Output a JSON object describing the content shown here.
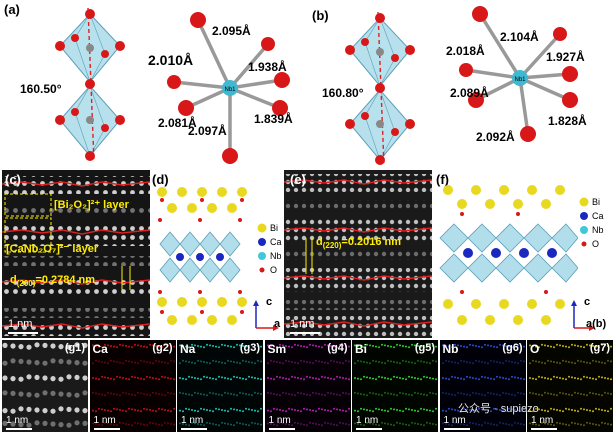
{
  "panel_labels": {
    "a": "(a)",
    "b": "(b)",
    "c": "(c)",
    "d": "(d)",
    "e": "(e)",
    "f": "(f)"
  },
  "panel_a": {
    "angle": "160.50°",
    "bonds": [
      "2.095Å",
      "2.010Å",
      "1.938Å",
      "2.081Å",
      "1.839Å",
      "2.097Å"
    ],
    "center_atom": "Nb1"
  },
  "panel_b": {
    "angle": "160.80°",
    "bonds": [
      "2.104Å",
      "2.018Å",
      "1.927Å",
      "2.089Å",
      "1.828Å",
      "2.092Å"
    ],
    "center_atom": "Nb1"
  },
  "panel_c": {
    "layer1": "[Bi₂O₂]²⁺ layer",
    "layer2": "[CaNb₂O₇]²⁻ layer",
    "d_label": "d",
    "d_sub": "(200)",
    "d_value": "=0.2784 nm",
    "scale": "1 nm"
  },
  "panel_d": {
    "legend": [
      "Bi",
      "Ca",
      "Nb",
      "O"
    ],
    "axis_up": "c",
    "axis_right": "a"
  },
  "panel_e": {
    "d_label": "d",
    "d_sub": "(220)",
    "d_value": "=0.2016 nm",
    "scale": "1 nm"
  },
  "panel_f": {
    "legend": [
      "Bi",
      "Ca",
      "Nb",
      "O"
    ],
    "axis_up": "c",
    "axis_right": "a(b)"
  },
  "eds_tiles": [
    {
      "name": "",
      "code": "(g1)",
      "color": "#d8d8d8",
      "bg": "#1a1a1a"
    },
    {
      "name": "Ca",
      "code": "(g2)",
      "color": "#d01020",
      "bg": "#080000"
    },
    {
      "name": "Na",
      "code": "(g3)",
      "color": "#20d0c0",
      "bg": "#000505"
    },
    {
      "name": "Sm",
      "code": "(g4)",
      "color": "#c020c0",
      "bg": "#050005"
    },
    {
      "name": "Bi",
      "code": "(g5)",
      "color": "#30e030",
      "bg": "#000500"
    },
    {
      "name": "Nb",
      "code": "(g6)",
      "color": "#3050e0",
      "bg": "#000008"
    },
    {
      "name": "O",
      "code": "(g7)",
      "color": "#d0c020",
      "bg": "#050500"
    }
  ],
  "eds_scale": "1 nm",
  "watermark": "公众号 · supiezo",
  "colors": {
    "bi": "#e8d820",
    "ca": "#1a28c0",
    "nb": "#40c8d8",
    "o": "#d81818",
    "oct": "#8fd0e0",
    "dashed": "#e02020",
    "highlight": "#ffee00"
  }
}
